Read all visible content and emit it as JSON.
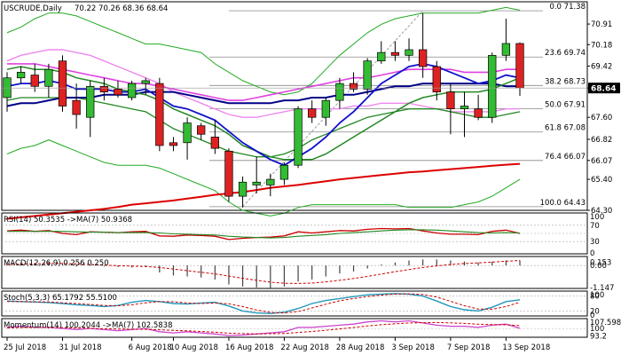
{
  "header": {
    "symbol": "USCRUDE,Daily",
    "ohlc": "70.22 70.26 68.36 68.64"
  },
  "colors": {
    "bull": "#33bb33",
    "bear": "#dd2222",
    "ema_fast": "#1010cc",
    "sma_slow": "#228822",
    "pink": "#e040e0",
    "pink_light": "#ee88ee",
    "trend": "#dd0000",
    "bands": "#22aa22",
    "fib": "#888888",
    "rsi": "#cc0000",
    "rsi_ma": "#228822",
    "macd": "#000000",
    "macd_sig": "#cc0000",
    "stoch_k": "#2299bb",
    "stoch_d": "#cc0000",
    "mom": "#cc44cc",
    "mom_ma": "#cc0000",
    "current_tag": "#000000"
  },
  "chart_data": {
    "type": "candlestick",
    "ylim": [
      64.3,
      71.7
    ],
    "price_ticks": [
      "70.91",
      "70.18",
      "69.42",
      "68.64",
      "67.60",
      "66.82",
      "66.07",
      "65.40",
      "64.30"
    ],
    "current_price": "68.64",
    "fib_levels": [
      {
        "label": "0.0 71.38",
        "value": 71.38
      },
      {
        "label": "23.6 69.74",
        "value": 69.74
      },
      {
        "label": "38.2 68.73",
        "value": 68.73
      },
      {
        "label": "50.0 67.91",
        "value": 67.91
      },
      {
        "label": "61.8 67.08",
        "value": 67.08
      },
      {
        "label": "76.4 66.07",
        "value": 66.07
      },
      {
        "label": "100.0 64.43",
        "value": 64.43
      }
    ],
    "x_labels": [
      "25 Jul 2018",
      "31 Jul 2018",
      "6 Aug 2018",
      "10 Aug 2018",
      "16 Aug 2018",
      "22 Aug 2018",
      "28 Aug 2018",
      "3 Sep 2018",
      "7 Sep 2018",
      "13 Sep 2018"
    ],
    "x_label_index": [
      0,
      4,
      9,
      12,
      16,
      20,
      24,
      28,
      32,
      36
    ],
    "candles": [
      {
        "o": 68.3,
        "h": 69.2,
        "l": 67.8,
        "c": 69.0
      },
      {
        "o": 69.0,
        "h": 69.4,
        "l": 68.8,
        "c": 69.2
      },
      {
        "o": 69.1,
        "h": 69.5,
        "l": 68.5,
        "c": 68.7
      },
      {
        "o": 68.7,
        "h": 69.5,
        "l": 68.3,
        "c": 69.3
      },
      {
        "o": 69.6,
        "h": 69.8,
        "l": 67.8,
        "c": 68.0
      },
      {
        "o": 68.2,
        "h": 68.8,
        "l": 67.2,
        "c": 67.7
      },
      {
        "o": 67.6,
        "h": 68.9,
        "l": 66.9,
        "c": 68.7
      },
      {
        "o": 68.7,
        "h": 69.0,
        "l": 68.2,
        "c": 68.5
      },
      {
        "o": 68.6,
        "h": 68.9,
        "l": 68.3,
        "c": 68.4
      },
      {
        "o": 68.3,
        "h": 68.9,
        "l": 68.2,
        "c": 68.8
      },
      {
        "o": 68.8,
        "h": 69.0,
        "l": 68.4,
        "c": 68.9
      },
      {
        "o": 68.8,
        "h": 69.0,
        "l": 66.4,
        "c": 66.6
      },
      {
        "o": 66.7,
        "h": 66.9,
        "l": 66.4,
        "c": 66.6
      },
      {
        "o": 66.7,
        "h": 67.6,
        "l": 66.1,
        "c": 67.4
      },
      {
        "o": 67.3,
        "h": 67.4,
        "l": 66.8,
        "c": 67.0
      },
      {
        "o": 66.9,
        "h": 67.5,
        "l": 66.3,
        "c": 66.5
      },
      {
        "o": 66.4,
        "h": 66.5,
        "l": 64.6,
        "c": 64.8
      },
      {
        "o": 64.8,
        "h": 65.5,
        "l": 64.4,
        "c": 65.3
      },
      {
        "o": 65.2,
        "h": 66.2,
        "l": 64.9,
        "c": 65.3
      },
      {
        "o": 65.2,
        "h": 65.6,
        "l": 64.8,
        "c": 65.4
      },
      {
        "o": 65.4,
        "h": 66.0,
        "l": 65.2,
        "c": 65.9
      },
      {
        "o": 65.9,
        "h": 68.0,
        "l": 65.8,
        "c": 67.9
      },
      {
        "o": 67.9,
        "h": 68.2,
        "l": 67.4,
        "c": 67.6
      },
      {
        "o": 67.6,
        "h": 68.3,
        "l": 67.3,
        "c": 68.2
      },
      {
        "o": 68.2,
        "h": 69.0,
        "l": 67.9,
        "c": 68.8
      },
      {
        "o": 68.8,
        "h": 69.2,
        "l": 68.5,
        "c": 68.6
      },
      {
        "o": 68.6,
        "h": 69.7,
        "l": 68.4,
        "c": 69.6
      },
      {
        "o": 69.6,
        "h": 70.3,
        "l": 69.5,
        "c": 69.9
      },
      {
        "o": 69.9,
        "h": 70.3,
        "l": 69.6,
        "c": 69.8
      },
      {
        "o": 69.8,
        "h": 70.4,
        "l": 69.6,
        "c": 70.0
      },
      {
        "o": 70.0,
        "h": 71.3,
        "l": 69.0,
        "c": 69.4
      },
      {
        "o": 69.4,
        "h": 69.6,
        "l": 68.2,
        "c": 68.5
      },
      {
        "o": 68.5,
        "h": 68.8,
        "l": 67.0,
        "c": 67.9
      },
      {
        "o": 67.9,
        "h": 68.5,
        "l": 66.9,
        "c": 68.0
      },
      {
        "o": 67.9,
        "h": 68.4,
        "l": 67.5,
        "c": 67.6
      },
      {
        "o": 67.6,
        "h": 69.9,
        "l": 67.4,
        "c": 69.8
      },
      {
        "o": 69.8,
        "h": 71.1,
        "l": 69.6,
        "c": 70.22
      },
      {
        "o": 70.22,
        "h": 70.26,
        "l": 68.36,
        "c": 68.64
      }
    ],
    "ema_fast": [
      68.7,
      68.8,
      68.8,
      68.9,
      68.8,
      68.6,
      68.6,
      68.6,
      68.5,
      68.5,
      68.6,
      68.3,
      68.0,
      67.9,
      67.7,
      67.5,
      67.1,
      66.7,
      66.4,
      66.1,
      65.9,
      66.2,
      66.5,
      66.9,
      67.4,
      67.8,
      68.3,
      68.8,
      69.1,
      69.4,
      69.5,
      69.4,
      69.2,
      69.0,
      68.8,
      68.9,
      69.1,
      69.0
    ],
    "sma_slow": [
      69.3,
      69.4,
      69.3,
      69.3,
      69.2,
      69.0,
      68.9,
      68.8,
      68.6,
      68.5,
      68.4,
      68.2,
      67.9,
      67.7,
      67.5,
      67.3,
      67.0,
      66.6,
      66.4,
      66.2,
      66.1,
      66.1,
      66.1,
      66.3,
      66.6,
      66.9,
      67.2,
      67.5,
      67.8,
      68.1,
      68.3,
      68.4,
      68.5,
      68.5,
      68.5,
      68.6,
      68.8,
      69.0
    ],
    "ma_blue2": [
      68.0,
      68.1,
      68.1,
      68.2,
      68.3,
      68.3,
      68.3,
      68.4,
      68.4,
      68.4,
      68.5,
      68.5,
      68.5,
      68.4,
      68.3,
      68.2,
      68.1,
      68.1,
      68.1,
      68.1,
      68.2,
      68.2,
      68.3,
      68.3,
      68.4,
      68.4,
      68.5,
      68.6,
      68.7,
      68.7,
      68.8,
      68.8,
      68.8,
      68.8,
      68.8,
      68.8,
      68.7,
      68.7
    ],
    "ma_green2": [
      68.2,
      68.3,
      68.3,
      68.3,
      68.3,
      68.3,
      68.2,
      68.1,
      68.0,
      67.9,
      67.8,
      67.5,
      67.2,
      67.0,
      66.8,
      66.6,
      66.4,
      66.3,
      66.2,
      66.2,
      66.3,
      66.5,
      66.8,
      67.0,
      67.2,
      67.4,
      67.6,
      67.7,
      67.8,
      67.9,
      67.9,
      67.9,
      67.8,
      67.7,
      67.6,
      67.6,
      67.7,
      67.8
    ],
    "pink_ma": [
      69.5,
      69.5,
      69.5,
      69.4,
      69.3,
      69.2,
      69.1,
      69.0,
      68.9,
      68.8,
      68.8,
      68.7,
      68.6,
      68.5,
      68.4,
      68.3,
      68.2,
      68.2,
      68.3,
      68.4,
      68.5,
      68.6,
      68.7,
      68.8,
      68.9,
      69.0,
      69.0,
      69.1,
      69.2,
      69.3,
      69.3,
      69.3,
      69.3,
      69.2,
      69.2,
      69.2,
      69.3,
      69.3
    ],
    "pink_ma2": [
      69.6,
      69.8,
      69.9,
      70.0,
      70.0,
      69.9,
      69.8,
      69.6,
      69.4,
      69.2,
      69.0,
      68.8,
      68.5,
      68.3,
      68.1,
      67.9,
      67.7,
      67.6,
      67.6,
      67.7,
      67.8,
      67.9,
      67.9,
      67.9,
      67.9,
      68.0,
      68.0,
      68.1,
      68.1,
      68.1,
      68.0,
      67.9,
      67.8,
      67.8,
      67.8,
      67.8,
      67.9,
      67.9
    ],
    "bb_upper": [
      70.6,
      70.8,
      71.1,
      71.3,
      71.3,
      71.2,
      71.0,
      70.8,
      70.6,
      70.4,
      70.2,
      70.2,
      70.1,
      70.0,
      69.9,
      69.5,
      69.2,
      68.9,
      68.7,
      68.5,
      68.4,
      68.5,
      68.8,
      69.3,
      69.8,
      70.2,
      70.6,
      70.9,
      71.1,
      71.2,
      71.3,
      71.3,
      71.3,
      71.3,
      71.3,
      71.4,
      71.5,
      71.4
    ],
    "bb_lower": [
      66.3,
      66.5,
      66.6,
      66.8,
      66.6,
      66.4,
      66.2,
      66.0,
      65.9,
      65.9,
      65.9,
      65.8,
      65.6,
      65.4,
      65.2,
      65.0,
      64.6,
      64.3,
      64.2,
      64.1,
      64.2,
      64.4,
      64.5,
      64.5,
      64.5,
      64.5,
      64.5,
      64.5,
      64.5,
      64.4,
      64.4,
      64.4,
      64.4,
      64.5,
      64.6,
      64.8,
      65.1,
      65.4
    ],
    "trend_line": [
      64.0,
      64.05,
      64.1,
      64.15,
      64.2,
      64.25,
      64.3,
      64.35,
      64.42,
      64.5,
      64.55,
      64.6,
      64.65,
      64.72,
      64.78,
      64.85,
      64.9,
      64.95,
      65.02,
      65.1,
      65.15,
      65.2,
      65.27,
      65.33,
      65.4,
      65.45,
      65.5,
      65.55,
      65.6,
      65.65,
      65.68,
      65.72,
      65.76,
      65.8,
      65.84,
      65.88,
      65.92,
      65.95
    ],
    "rsi": {
      "label": "RSI(14) 50.3535 ->MA(7) 50.9368",
      "ticks": [
        "100",
        "70",
        "30",
        "0"
      ],
      "values": [
        56,
        58,
        55,
        57,
        50,
        47,
        54,
        53,
        52,
        54,
        55,
        44,
        43,
        46,
        45,
        43,
        35,
        38,
        40,
        41,
        44,
        54,
        51,
        54,
        57,
        56,
        60,
        62,
        61,
        62,
        56,
        51,
        48,
        48,
        47,
        55,
        58,
        50
      ],
      "ma": [
        55,
        55,
        55,
        55,
        55,
        54,
        53,
        53,
        52,
        52,
        52,
        51,
        49,
        48,
        47,
        46,
        43,
        41,
        40,
        39,
        40,
        43,
        45,
        47,
        50,
        52,
        54,
        56,
        58,
        59,
        59,
        58,
        56,
        54,
        52,
        51,
        52,
        51
      ]
    },
    "macd": {
      "label": "MACD(12,26,9) 0.256 0.250",
      "ticks": [
        "0.153",
        "0.00",
        "-1.147"
      ],
      "hist": [
        0.1,
        0.15,
        0.12,
        0.15,
        0.08,
        -0.05,
        -0.02,
        -0.05,
        -0.08,
        -0.1,
        -0.08,
        -0.35,
        -0.5,
        -0.55,
        -0.6,
        -0.7,
        -0.95,
        -1.05,
        -1.1,
        -1.12,
        -1.05,
        -0.8,
        -0.7,
        -0.55,
        -0.4,
        -0.3,
        -0.15,
        0.05,
        0.15,
        0.25,
        0.3,
        0.3,
        0.25,
        0.2,
        0.15,
        0.2,
        0.26,
        0.256
      ],
      "signal": [
        0.05,
        0.07,
        0.08,
        0.1,
        0.1,
        0.08,
        0.05,
        0.02,
        -0.01,
        -0.03,
        -0.05,
        -0.1,
        -0.18,
        -0.26,
        -0.34,
        -0.42,
        -0.53,
        -0.64,
        -0.74,
        -0.83,
        -0.89,
        -0.9,
        -0.88,
        -0.82,
        -0.74,
        -0.65,
        -0.55,
        -0.43,
        -0.31,
        -0.2,
        -0.1,
        -0.02,
        0.05,
        0.1,
        0.13,
        0.17,
        0.21,
        0.25
      ]
    },
    "stoch": {
      "label": "Stoch(5,3,3) 65.1792 55.5100",
      "ticks": [
        "100",
        "80",
        "20",
        "0"
      ],
      "k": [
        60,
        58,
        56,
        54,
        50,
        45,
        42,
        38,
        42,
        55,
        62,
        58,
        50,
        48,
        52,
        55,
        40,
        20,
        12,
        10,
        15,
        30,
        50,
        62,
        70,
        78,
        85,
        88,
        90,
        88,
        80,
        60,
        38,
        25,
        20,
        35,
        58,
        65
      ],
      "d": [
        58,
        58,
        57,
        56,
        53,
        50,
        46,
        42,
        41,
        45,
        53,
        58,
        57,
        52,
        50,
        52,
        49,
        38,
        24,
        14,
        12,
        18,
        32,
        47,
        61,
        70,
        78,
        84,
        88,
        89,
        86,
        76,
        59,
        41,
        28,
        27,
        38,
        55.5
      ]
    },
    "momentum": {
      "label": "Momentum(14) 100.2044 ->MA(7) 102.5838",
      "ticks": [
        "107.5986",
        "100",
        "93.2"
      ],
      "values": [
        101,
        102,
        101,
        101,
        100,
        99,
        100,
        99,
        98,
        99,
        100,
        97,
        96,
        97,
        96,
        95,
        93.5,
        94,
        95,
        96,
        97,
        101,
        101,
        102,
        103,
        104,
        106,
        107,
        106,
        107,
        105,
        103,
        102,
        102,
        101,
        103,
        104,
        100.2
      ],
      "ma": [
        100.5,
        100.8,
        101,
        101,
        100.8,
        100.4,
        100.2,
        99.8,
        99.5,
        99.4,
        99.3,
        98.8,
        98.2,
        97.8,
        97.2,
        96.6,
        95.7,
        95.3,
        95.1,
        95.2,
        95.5,
        96.4,
        97.3,
        98.4,
        99.6,
        100.9,
        102.3,
        103.4,
        104.2,
        105,
        105.3,
        105.4,
        105.1,
        104.6,
        103.9,
        103.6,
        103.3,
        102.58
      ]
    }
  }
}
